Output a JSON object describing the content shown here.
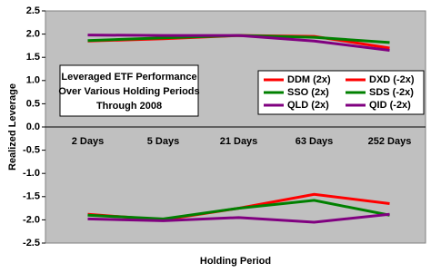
{
  "chart_data": {
    "type": "line",
    "title": [
      "Leveraged ETF Performance",
      "Over Various Holding Periods",
      "Through 2008"
    ],
    "x_label": "Holding Period",
    "y_label": "Realized Leverage",
    "categories": [
      "2 Days",
      "5 Days",
      "21 Days",
      "63 Days",
      "252 Days"
    ],
    "series": [
      {
        "name": "DDM (2x)",
        "color": "#ff0000",
        "values": [
          1.85,
          1.9,
          1.97,
          1.95,
          1.7
        ]
      },
      {
        "name": "DXD (-2x)",
        "color": "#ff0000",
        "values": [
          -1.88,
          -2.0,
          -1.75,
          -1.45,
          -1.65
        ]
      },
      {
        "name": "SSO (2x)",
        "color": "#008000",
        "values": [
          1.86,
          1.92,
          1.97,
          1.93,
          1.82
        ]
      },
      {
        "name": "SDS (-2x)",
        "color": "#008000",
        "values": [
          -1.9,
          -1.98,
          -1.75,
          -1.58,
          -1.9
        ]
      },
      {
        "name": "QLD (2x)",
        "color": "#800080",
        "values": [
          1.98,
          1.97,
          1.97,
          1.85,
          1.65
        ]
      },
      {
        "name": "QID (-2x)",
        "color": "#800080",
        "values": [
          -1.98,
          -2.02,
          -1.95,
          -2.05,
          -1.88
        ]
      }
    ],
    "ylim": [
      -2.5,
      2.5
    ],
    "yticks": [
      2.5,
      {
        "value": 2,
        "label": "2.0"
      },
      1.5,
      {
        "value": 1,
        "label": "1.0"
      },
      0.5,
      {
        "value": 0,
        "label": "0.0"
      },
      -0.5,
      {
        "value": -1,
        "label": "-1.0"
      },
      -1.5,
      {
        "value": -2,
        "label": "-2.0"
      },
      -2.5
    ],
    "grid": false
  }
}
